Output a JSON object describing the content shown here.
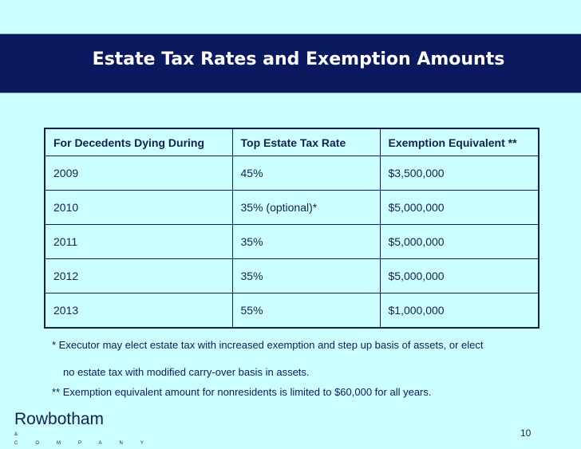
{
  "header": {
    "title": "Estate Tax Rates and Exemption Amounts"
  },
  "table": {
    "headers": [
      "For Decedents Dying During",
      "Top Estate Tax Rate",
      "Exemption Equivalent **"
    ],
    "rows": [
      [
        "2009",
        "45%",
        "$3,500,000"
      ],
      [
        "2010",
        "35% (optional)*",
        "$5,000,000"
      ],
      [
        "2011",
        "35%",
        "$5,000,000"
      ],
      [
        "2012",
        "35%",
        "$5,000,000"
      ],
      [
        "2013",
        "55%",
        "$1,000,000"
      ]
    ]
  },
  "footnotes": [
    "*  Executor may elect estate tax with increased exemption and step up basis of assets, or elect",
    "no estate tax with modified carry-over basis in assets.",
    "** Exemption equivalent amount for nonresidents is limited to $60,000 for all years."
  ],
  "footer": {
    "brand": "Rowbotham",
    "subbrand": "& COMPANY LLP",
    "page": "10"
  }
}
